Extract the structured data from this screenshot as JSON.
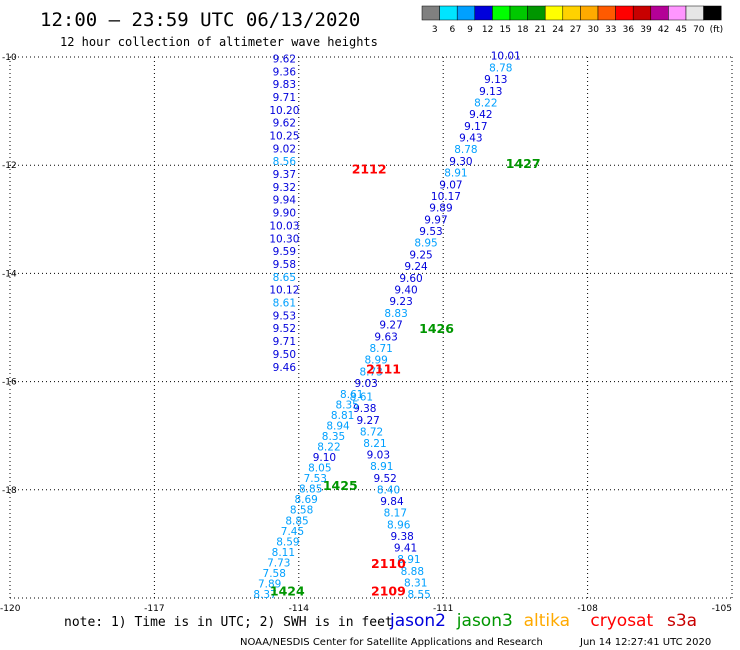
{
  "title": "12:00 – 23:59 UTC 06/13/2020",
  "subtitle": "12 hour collection of altimeter wave heights",
  "colorbar": {
    "labels": [
      "3",
      "6",
      "9",
      "12",
      "15",
      "18",
      "21",
      "24",
      "27",
      "30",
      "33",
      "36",
      "39",
      "42",
      "45",
      "70",
      "(ft)"
    ],
    "colors": [
      "#808080",
      "#00e5ff",
      "#00a0ff",
      "#0000dc",
      "#00ff00",
      "#00c800",
      "#009600",
      "#ffff00",
      "#ffd200",
      "#ffaa00",
      "#ff5a00",
      "#ff0000",
      "#c80000",
      "#b40096",
      "#ff96ff",
      "#e6e6e6",
      "#000000"
    ]
  },
  "note": "note: 1) Time is in UTC; 2) SWH is in feet",
  "satellites": [
    {
      "name": "jason2",
      "color": "#0000dc"
    },
    {
      "name": "jason3",
      "color": "#009600"
    },
    {
      "name": "altika",
      "color": "#ffaa00"
    },
    {
      "name": "cryosat",
      "color": "#ff0000"
    },
    {
      "name": "s3a",
      "color": "#c80000"
    }
  ],
  "footer_center": "NOAA/NESDIS Center for Satellite Applications and Research",
  "footer_right": "Jun 14 12:27:41 UTC 2020",
  "chart_data": {
    "type": "scatter",
    "xlim": [
      -120,
      -105
    ],
    "ylim": [
      -20,
      -10
    ],
    "x_ticks": [
      "-120",
      "-117",
      "-114",
      "-111",
      "-108",
      "-105"
    ],
    "y_ticks": [
      "-10",
      "-12",
      "-14",
      "-16",
      "-18",
      "-20"
    ],
    "grid": true,
    "tracks": [
      {
        "satellite": "jason2",
        "color": "#0000dc",
        "start": [
          -114.3,
          -10.1
        ],
        "end": [
          -114.3,
          -15.8
        ],
        "values": [
          "9.62",
          "9.36",
          "9.83",
          "9.71",
          "10.20",
          "9.62",
          "10.25",
          "9.02",
          "8.56",
          "9.37",
          "9.32",
          "9.94",
          "9.90",
          "10.03",
          "10.30",
          "9.59",
          "9.58",
          "8.65",
          "10.12",
          "8.61",
          "9.53",
          "9.52",
          "9.71",
          "9.50",
          "9.46"
        ]
      },
      {
        "satellite": "jason2",
        "color": "#0000dc",
        "start": [
          -109.7,
          -10.05
        ],
        "end": [
          -112.6,
          -16.1
        ],
        "values": [
          "10.01",
          "8.78",
          "9.13",
          "9.13",
          "8.22",
          "9.42",
          "9.17",
          "9.43",
          "8.78",
          "9.30",
          "8.91",
          "9.07",
          "10.17",
          "9.89",
          "9.97",
          "9.53",
          "8.95",
          "9.25",
          "9.24",
          "9.60",
          "9.40",
          "9.23",
          "8.83",
          "9.27",
          "9.63",
          "8.71",
          "8.99",
          "8.73",
          "9.03"
        ]
      },
      {
        "satellite": "jason2",
        "color": "#0000dc",
        "start": [
          -112.7,
          -16.35
        ],
        "end": [
          -111.5,
          -20.0
        ],
        "values": [
          "8.61",
          "9.38",
          "9.27",
          "8.72",
          "8.21",
          "9.03",
          "8.91",
          "9.52",
          "8.40",
          "9.84",
          "8.17",
          "8.96",
          "9.38",
          "9.41",
          "8.91",
          "8.88",
          "8.31",
          "8.55"
        ]
      },
      {
        "satellite": "jason3",
        "color": "#009600",
        "start": [
          -112.9,
          -16.3
        ],
        "end": [
          -114.7,
          -20.0
        ],
        "values": [
          "8.61",
          "8.35",
          "8.81",
          "8.94",
          "8.35",
          "8.22",
          "9.10",
          "8.05",
          "7.53",
          "8.85",
          "8.69",
          "8.58",
          "8.85",
          "7.45",
          "8.59",
          "8.11",
          "7.73",
          "7.58",
          "7.89",
          "8.37"
        ]
      }
    ],
    "pass_labels": [
      {
        "text": "2112",
        "color": "#ff0000",
        "x": -112.9,
        "y": -12.15
      },
      {
        "text": "1427",
        "color": "#009600",
        "x": -109.7,
        "y": -12.05
      },
      {
        "text": "1426",
        "color": "#009600",
        "x": -111.5,
        "y": -15.1
      },
      {
        "text": "2111",
        "color": "#ff0000",
        "x": -112.6,
        "y": -15.85
      },
      {
        "text": "1425",
        "color": "#009600",
        "x": -113.5,
        "y": -18.0
      },
      {
        "text": "2110",
        "color": "#ff0000",
        "x": -112.5,
        "y": -19.45
      },
      {
        "text": "2109",
        "color": "#ff0000",
        "x": -112.5,
        "y": -19.95
      },
      {
        "text": "1424",
        "color": "#009600",
        "x": -114.6,
        "y": -19.95
      }
    ]
  }
}
